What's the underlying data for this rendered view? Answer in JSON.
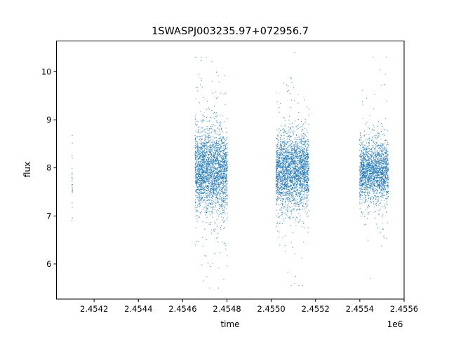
{
  "chart_data": {
    "type": "scatter",
    "title": "1SWASPJ003235.97+072956.7",
    "xlabel": "time",
    "ylabel": "flux",
    "x_offset_label": "1e6",
    "xlim": [
      2454030,
      2455600
    ],
    "ylim": [
      5.27,
      10.64
    ],
    "xticks": [
      2454200,
      2454400,
      2454600,
      2454800,
      2455000,
      2455200,
      2455400,
      2455600
    ],
    "xtick_labels": [
      "2.4542",
      "2.4544",
      "2.4546",
      "2.4548",
      "2.4550",
      "2.4552",
      "2.4554",
      "2.4556"
    ],
    "yticks": [
      6,
      7,
      8,
      9,
      10
    ],
    "ytick_labels": [
      "6",
      "7",
      "8",
      "9",
      "10"
    ],
    "grid": false,
    "marker_color": "#1f77b4",
    "segments": [
      {
        "t_start": 2454100,
        "t_end": 2454102,
        "flux_mean": 7.9,
        "flux_sd": 0.45,
        "points": 25,
        "flux_min": 6.9,
        "flux_max": 9.05
      },
      {
        "t_start": 2454656,
        "t_end": 2454802,
        "flux_mean": 7.95,
        "flux_sd": 0.42,
        "points": 2600,
        "flux_min": 5.5,
        "flux_max": 10.3
      },
      {
        "t_start": 2455021,
        "t_end": 2455170,
        "flux_mean": 7.95,
        "flux_sd": 0.38,
        "points": 2600,
        "flux_min": 5.55,
        "flux_max": 10.4
      },
      {
        "t_start": 2455399,
        "t_end": 2455529,
        "flux_mean": 7.95,
        "flux_sd": 0.3,
        "points": 2000,
        "flux_min": 5.55,
        "flux_max": 10.3
      }
    ]
  }
}
